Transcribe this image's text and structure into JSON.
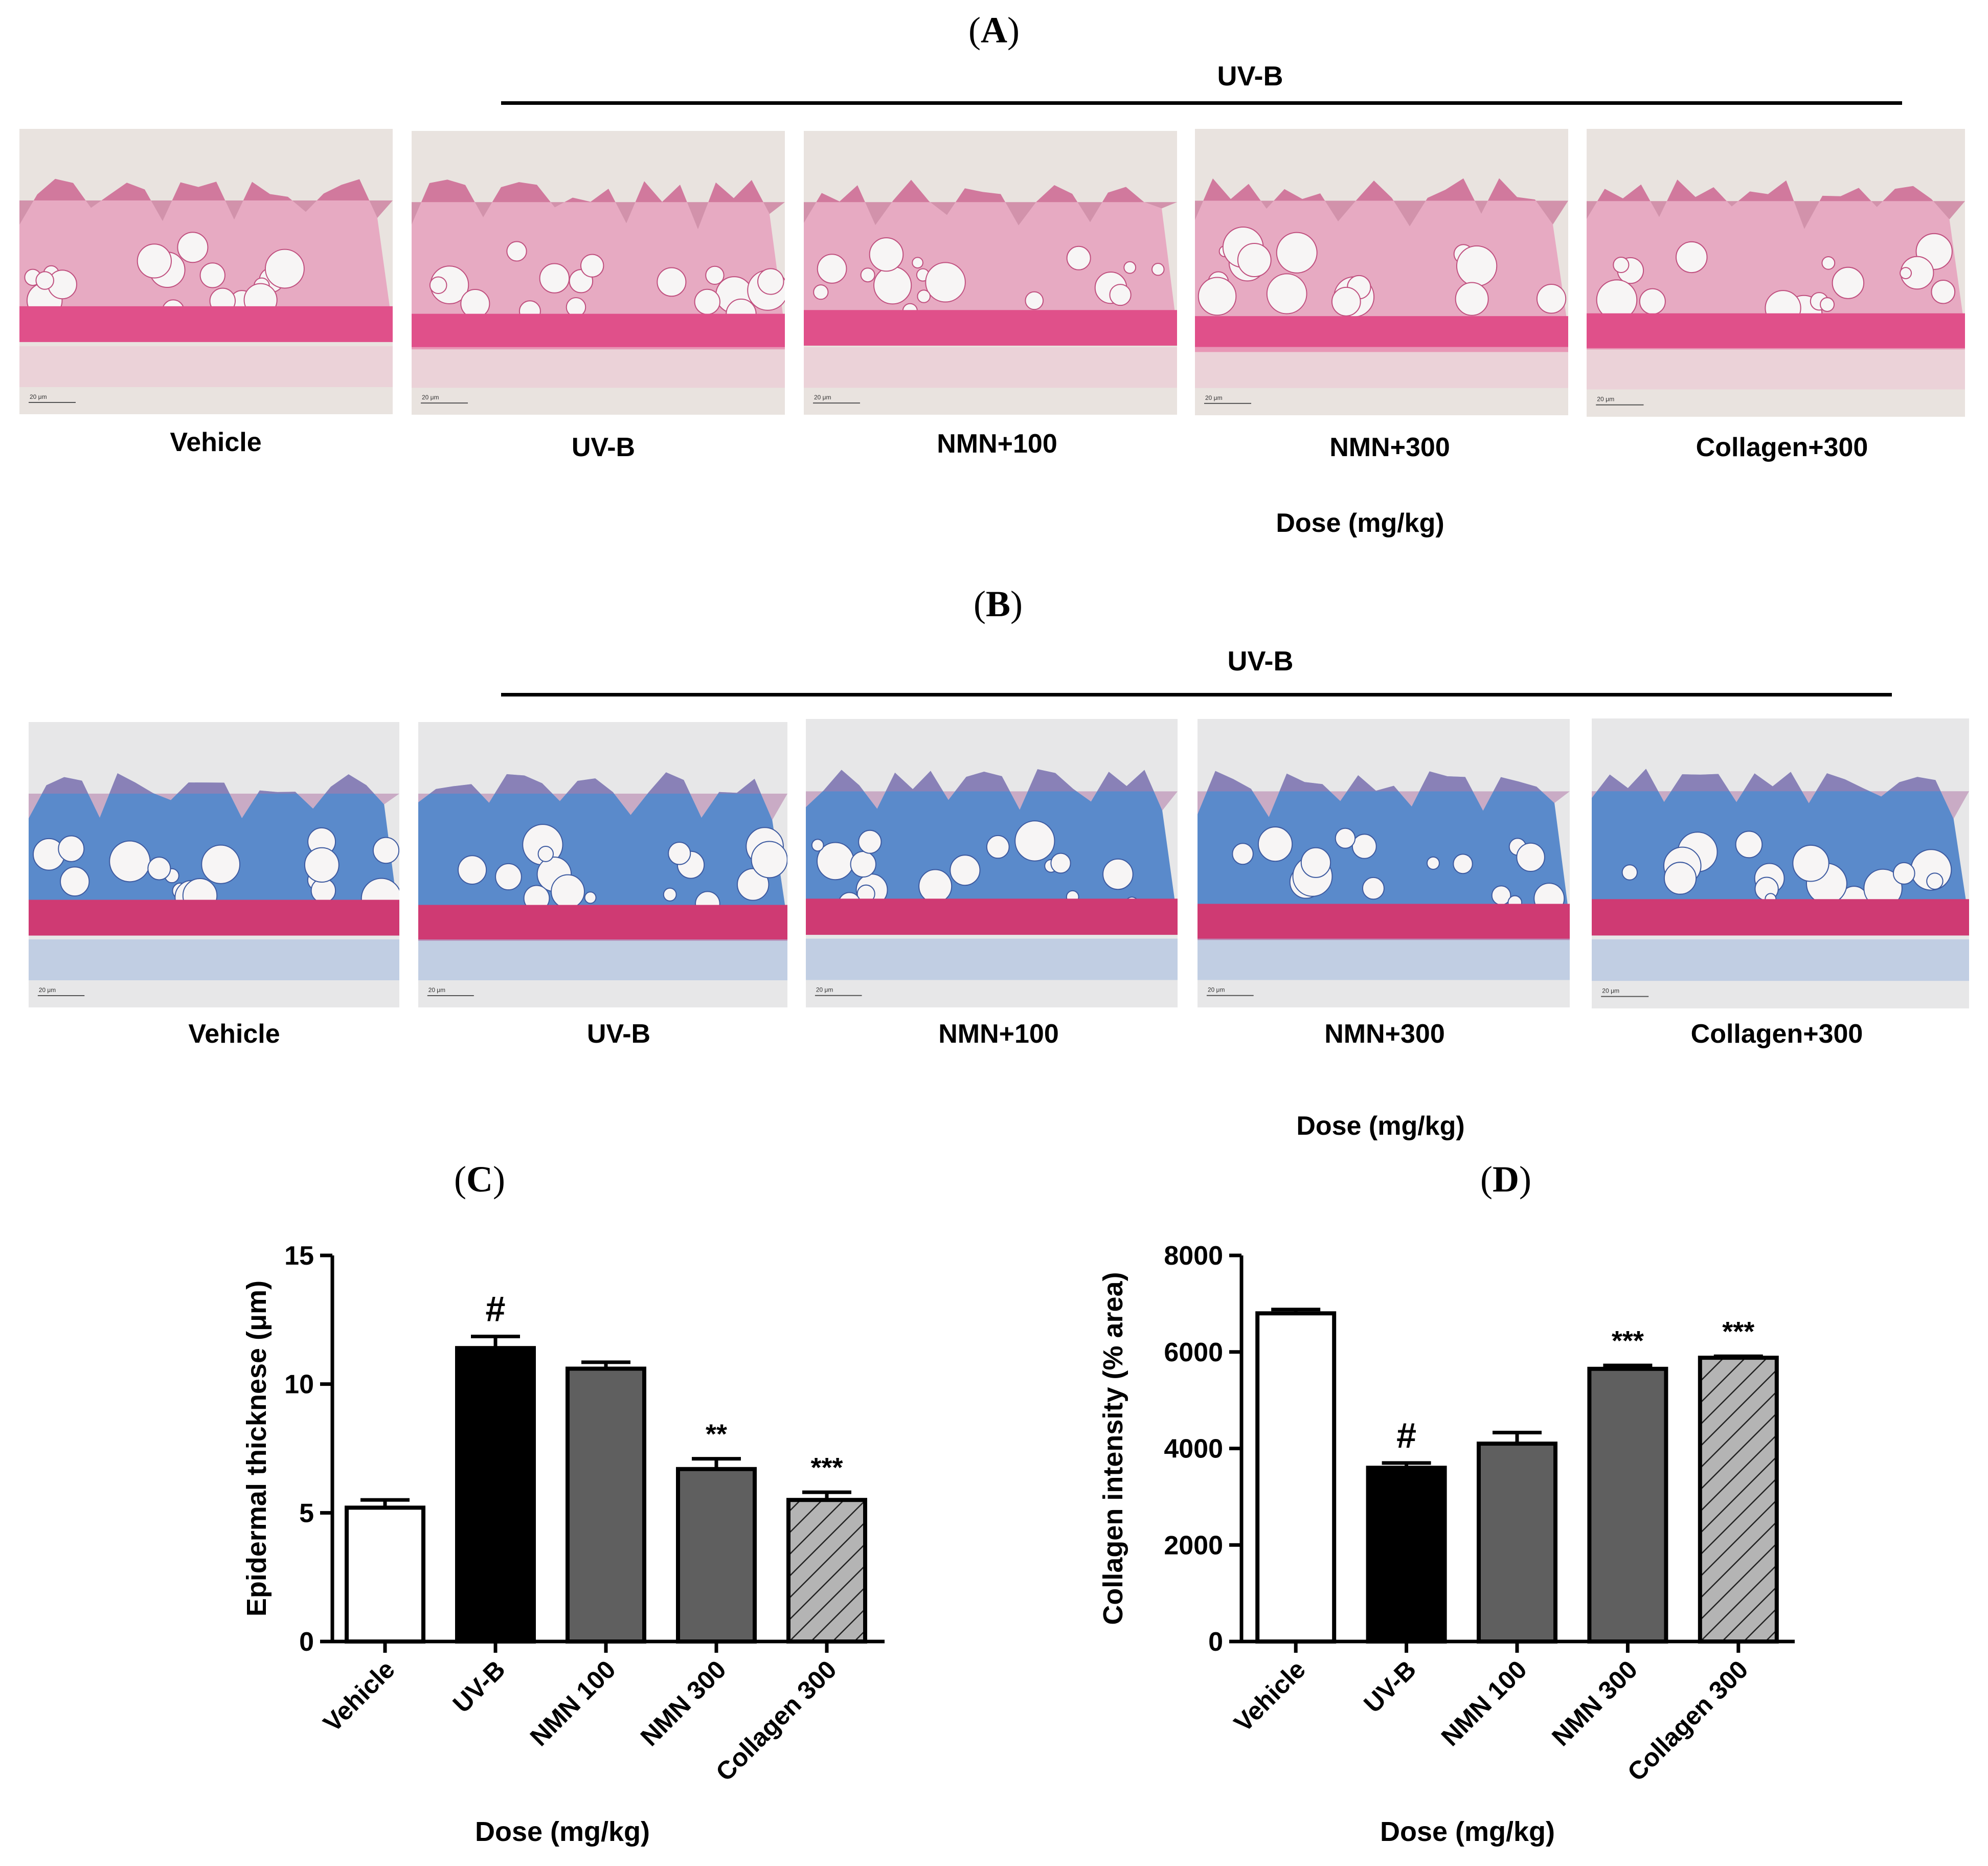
{
  "panel_a": {
    "letter": "A",
    "uvb_label": "UV-B",
    "captions": [
      "Vehicle",
      "UV-B",
      "NMN+100",
      "NMN+300",
      "Collagen+300"
    ],
    "scale_text": "20 μm",
    "dose_label": "Dose (mg/kg)"
  },
  "panel_b": {
    "letter": "B",
    "uvb_label": "UV-B",
    "captions": [
      "Vehicle",
      "UV-B",
      "NMN+100",
      "NMN+300",
      "Collagen+300"
    ],
    "scale_text": "20 μm",
    "dose_label": "Dose (mg/kg)"
  },
  "stain_colors": {
    "he_background": "#e9e3df",
    "he_tissue": "#e7a3bf",
    "he_epidermis": "#c0507f",
    "he_muscle": "#e0508a",
    "mt_background": "#e7e7e8",
    "mt_dermis": "#4a7fc8",
    "mt_muscle": "#cf3a73"
  },
  "chart_data": [
    {
      "panel": "C",
      "type": "bar",
      "ylabel": "Epidermal thicknese (μm)",
      "xlabel": "Dose (mg/kg)",
      "categories": [
        "Vehicle",
        "UV-B",
        "NMN 100",
        "NMN 300",
        "Collagen 300"
      ],
      "values": [
        5.2,
        11.4,
        10.6,
        6.7,
        5.5
      ],
      "errors": [
        0.3,
        0.45,
        0.25,
        0.4,
        0.3
      ],
      "annotations": [
        "",
        "#",
        "",
        "**",
        "***"
      ],
      "fills": [
        "#ffffff",
        "#000000",
        "#5f5f5f",
        "#5f5f5f",
        "hatch"
      ],
      "ylim": [
        0,
        15
      ],
      "yticks": [
        0,
        5,
        10,
        15
      ]
    },
    {
      "panel": "D",
      "type": "bar",
      "ylabel": "Collagen intensity (% area)",
      "xlabel": "Dose (mg/kg)",
      "categories": [
        "Vehicle",
        "UV-B",
        "NMN 100",
        "NMN 300",
        "Collagen 300"
      ],
      "values": [
        6800,
        3600,
        4100,
        5650,
        5880
      ],
      "errors": [
        80,
        100,
        230,
        70,
        30
      ],
      "annotations": [
        "",
        "#",
        "",
        "***",
        "***"
      ],
      "fills": [
        "#ffffff",
        "#000000",
        "#5f5f5f",
        "#5f5f5f",
        "hatch"
      ],
      "ylim": [
        0,
        8000
      ],
      "yticks": [
        0,
        2000,
        4000,
        6000,
        8000
      ]
    }
  ]
}
